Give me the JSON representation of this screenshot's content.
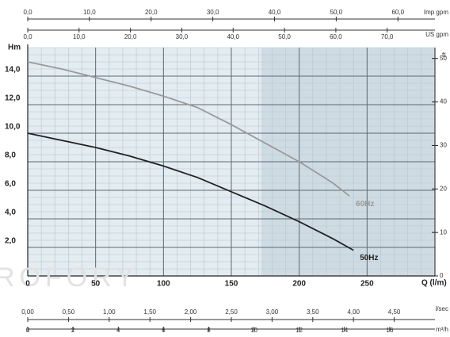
{
  "chart_data": {
    "type": "line",
    "x_label": "Q (l/m)",
    "y_label": "Hm",
    "watermark": "ROFORY",
    "xlim": [
      0,
      300
    ],
    "xticks": [
      0,
      50,
      100,
      150,
      200,
      250
    ],
    "ylim": [
      0,
      16
    ],
    "yticks": [
      {
        "value": 2,
        "label": "2,0"
      },
      {
        "value": 4,
        "label": "4,0"
      },
      {
        "value": 6,
        "label": "6,0"
      },
      {
        "value": 8,
        "label": "8,0"
      },
      {
        "value": 10,
        "label": "10,0"
      },
      {
        "value": 12,
        "label": "12,0"
      },
      {
        "value": 14,
        "label": "14,0"
      }
    ],
    "y2_label": "ft",
    "y2lim": [
      0,
      52.5
    ],
    "y2ticks": [
      0,
      10,
      20,
      30,
      40,
      50
    ],
    "grid": true,
    "shaded_xrange": [
      172,
      300
    ],
    "top_axes": [
      {
        "label": "Imp gpm",
        "lim": [
          0,
          66
        ],
        "ticks": [
          {
            "value": 0,
            "label": "0,0"
          },
          {
            "value": 10,
            "label": "10,0"
          },
          {
            "value": 20,
            "label": "20,0"
          },
          {
            "value": 30,
            "label": "30,0"
          },
          {
            "value": 40,
            "label": "40,0"
          },
          {
            "value": 50,
            "label": "50,0"
          },
          {
            "value": 60,
            "label": "60,0"
          }
        ]
      },
      {
        "label": "US gpm",
        "lim": [
          0,
          79.3
        ],
        "ticks": [
          {
            "value": 0,
            "label": "0,0"
          },
          {
            "value": 10,
            "label": "10,0"
          },
          {
            "value": 20,
            "label": "20,0"
          },
          {
            "value": 30,
            "label": "30,0"
          },
          {
            "value": 40,
            "label": "40,0"
          },
          {
            "value": 50,
            "label": "50,0"
          },
          {
            "value": 60,
            "label": "60,0"
          },
          {
            "value": 70,
            "label": "70,0"
          }
        ]
      }
    ],
    "bottom_axes": [
      {
        "label": "l/sec",
        "lim": [
          0,
          5
        ],
        "ticks": [
          {
            "value": 0,
            "label": "0,00"
          },
          {
            "value": 0.5,
            "label": "0,50"
          },
          {
            "value": 1,
            "label": "1,00"
          },
          {
            "value": 1.5,
            "label": "1,50"
          },
          {
            "value": 2,
            "label": "2,00"
          },
          {
            "value": 2.5,
            "label": "2,50"
          },
          {
            "value": 3,
            "label": "3,00"
          },
          {
            "value": 3.5,
            "label": "3,50"
          },
          {
            "value": 4,
            "label": "4,00"
          },
          {
            "value": 4.5,
            "label": "4,50"
          }
        ]
      },
      {
        "label": "m³/h",
        "lim": [
          0,
          18
        ],
        "ticks": [
          0,
          2,
          4,
          6,
          8,
          10,
          12,
          14,
          16
        ]
      }
    ],
    "series": [
      {
        "name": "60Hz",
        "color": "#9a9a9a",
        "x": [
          0,
          25,
          50,
          75,
          100,
          125,
          150,
          175,
          200,
          225,
          237
        ],
        "values": [
          15.0,
          14.5,
          13.9,
          13.3,
          12.6,
          11.8,
          10.6,
          9.3,
          8.0,
          6.5,
          5.6
        ]
      },
      {
        "name": "50Hz",
        "color": "#222222",
        "x": [
          0,
          25,
          50,
          75,
          100,
          125,
          150,
          175,
          200,
          225,
          240
        ],
        "values": [
          10.0,
          9.5,
          9.0,
          8.4,
          7.7,
          6.9,
          5.9,
          4.9,
          3.8,
          2.6,
          1.8
        ]
      }
    ]
  }
}
